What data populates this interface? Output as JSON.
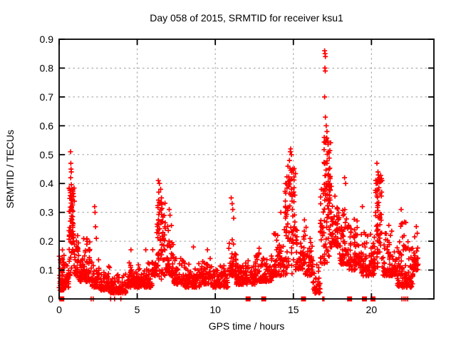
{
  "chart_data": {
    "type": "scatter",
    "title": "Day 058 of 2015, SRMTID for receiver ksu1",
    "xlabel": "GPS time / hours",
    "ylabel": "SRMTID / TECUs",
    "xlim": [
      0,
      24
    ],
    "ylim": [
      0,
      0.9
    ],
    "xticks": [
      0,
      5,
      10,
      15,
      20
    ],
    "yticks": [
      0,
      0.1,
      0.2,
      0.3,
      0.4,
      0.5,
      0.6,
      0.7,
      0.8,
      0.9
    ],
    "grid": true,
    "legend": "none",
    "marker": "plus",
    "colors": {
      "points": "#ff0000",
      "grid": "#9c9c9c",
      "axes": "#000000",
      "background": "#ffffff"
    },
    "seed": 7,
    "envelope_note": "dense scatter summarized as bands: [t_start_hr, t_end_hr, y_min, y_max, n_points, dist(l=low-biased,u=uniform)]",
    "envelope": [
      [
        0.0,
        0.35,
        0.03,
        0.18,
        55,
        "l"
      ],
      [
        0.35,
        0.62,
        0.04,
        0.13,
        28,
        "l"
      ],
      [
        0.62,
        0.98,
        0.2,
        0.4,
        52,
        "u"
      ],
      [
        0.62,
        0.98,
        0.08,
        0.2,
        18,
        "u"
      ],
      [
        0.98,
        1.25,
        0.08,
        0.3,
        32,
        "l"
      ],
      [
        1.25,
        1.55,
        0.06,
        0.18,
        34,
        "l"
      ],
      [
        1.55,
        2.05,
        0.06,
        0.24,
        48,
        "l"
      ],
      [
        2.05,
        2.55,
        0.04,
        0.16,
        48,
        "l"
      ],
      [
        2.55,
        3.25,
        0.03,
        0.12,
        62,
        "l"
      ],
      [
        3.25,
        4.35,
        0.02,
        0.1,
        92,
        "l"
      ],
      [
        4.35,
        5.05,
        0.04,
        0.16,
        62,
        "l"
      ],
      [
        5.05,
        5.95,
        0.04,
        0.14,
        78,
        "l"
      ],
      [
        5.95,
        6.25,
        0.08,
        0.22,
        28,
        "l"
      ],
      [
        6.25,
        6.8,
        0.14,
        0.36,
        58,
        "u"
      ],
      [
        6.25,
        6.8,
        0.06,
        0.15,
        15,
        "u"
      ],
      [
        6.8,
        7.35,
        0.08,
        0.28,
        44,
        "l"
      ],
      [
        7.35,
        8.05,
        0.05,
        0.16,
        58,
        "l"
      ],
      [
        8.05,
        9.05,
        0.04,
        0.15,
        88,
        "l"
      ],
      [
        9.05,
        9.85,
        0.05,
        0.16,
        68,
        "l"
      ],
      [
        9.85,
        10.85,
        0.04,
        0.13,
        88,
        "l"
      ],
      [
        10.85,
        11.35,
        0.08,
        0.26,
        48,
        "l"
      ],
      [
        11.35,
        11.85,
        0.05,
        0.17,
        44,
        "l"
      ],
      [
        11.85,
        12.55,
        0.05,
        0.14,
        58,
        "l"
      ],
      [
        12.55,
        13.65,
        0.06,
        0.2,
        92,
        "l"
      ],
      [
        13.65,
        14.45,
        0.08,
        0.27,
        68,
        "l"
      ],
      [
        14.45,
        15.15,
        0.2,
        0.46,
        66,
        "u"
      ],
      [
        14.45,
        15.15,
        0.08,
        0.2,
        20,
        "u"
      ],
      [
        15.15,
        15.75,
        0.1,
        0.32,
        54,
        "l"
      ],
      [
        15.75,
        16.25,
        0.08,
        0.3,
        44,
        "l"
      ],
      [
        16.25,
        16.72,
        0.02,
        0.14,
        38,
        "l"
      ],
      [
        16.72,
        17.0,
        0.12,
        0.38,
        28,
        "u"
      ],
      [
        16.95,
        17.4,
        0.28,
        0.56,
        62,
        "u"
      ],
      [
        16.95,
        17.4,
        0.12,
        0.3,
        24,
        "u"
      ],
      [
        17.4,
        17.95,
        0.18,
        0.44,
        58,
        "l"
      ],
      [
        17.95,
        18.55,
        0.12,
        0.38,
        58,
        "l"
      ],
      [
        18.55,
        19.35,
        0.1,
        0.3,
        68,
        "l"
      ],
      [
        19.35,
        20.25,
        0.08,
        0.28,
        78,
        "l"
      ],
      [
        20.25,
        20.68,
        0.2,
        0.43,
        48,
        "u"
      ],
      [
        20.25,
        20.68,
        0.1,
        0.22,
        14,
        "u"
      ],
      [
        20.68,
        21.65,
        0.08,
        0.28,
        82,
        "l"
      ],
      [
        21.65,
        22.65,
        0.04,
        0.3,
        105,
        "l"
      ],
      [
        22.65,
        23.0,
        0.1,
        0.26,
        38,
        "l"
      ]
    ],
    "outliers": [
      [
        0.73,
        0.51
      ],
      [
        0.75,
        0.47
      ],
      [
        0.76,
        0.45
      ],
      [
        0.78,
        0.44
      ],
      [
        0.74,
        0.42
      ],
      [
        0.85,
        0.38
      ],
      [
        2.27,
        0.32
      ],
      [
        2.3,
        0.3
      ],
      [
        2.33,
        0.25
      ],
      [
        2.38,
        0.21
      ],
      [
        4.6,
        0.17
      ],
      [
        5.55,
        0.17
      ],
      [
        6.35,
        0.41
      ],
      [
        6.42,
        0.4
      ],
      [
        6.5,
        0.38
      ],
      [
        6.38,
        0.37
      ],
      [
        6.55,
        0.35
      ],
      [
        7.05,
        0.31
      ],
      [
        7.1,
        0.29
      ],
      [
        8.6,
        0.18
      ],
      [
        9.5,
        0.17
      ],
      [
        11.02,
        0.35
      ],
      [
        11.08,
        0.33
      ],
      [
        11.12,
        0.31
      ],
      [
        11.18,
        0.28
      ],
      [
        14.2,
        0.3
      ],
      [
        14.83,
        0.52
      ],
      [
        14.8,
        0.51
      ],
      [
        14.88,
        0.5
      ],
      [
        14.75,
        0.48
      ],
      [
        14.65,
        0.46
      ],
      [
        14.95,
        0.45
      ],
      [
        17.0,
        0.86
      ],
      [
        17.03,
        0.85
      ],
      [
        17.05,
        0.84
      ],
      [
        17.02,
        0.8
      ],
      [
        17.04,
        0.79
      ],
      [
        17.0,
        0.7
      ],
      [
        17.05,
        0.63
      ],
      [
        17.1,
        0.6
      ],
      [
        17.15,
        0.58
      ],
      [
        18.28,
        0.42
      ],
      [
        18.35,
        0.4
      ],
      [
        19.42,
        0.32
      ],
      [
        20.35,
        0.47
      ],
      [
        20.42,
        0.44
      ],
      [
        20.5,
        0.42
      ],
      [
        20.3,
        0.4
      ],
      [
        21.9,
        0.31
      ]
    ],
    "zero_value_squares_hours": [
      0.17,
      12.1,
      13.1,
      15.65,
      18.6,
      19.55,
      20.1
    ],
    "zero_value_plus_hours": [
      2.05,
      2.18,
      3.3,
      3.55,
      3.95,
      16.88,
      16.96,
      21.95,
      22.08,
      22.2,
      22.32
    ]
  }
}
